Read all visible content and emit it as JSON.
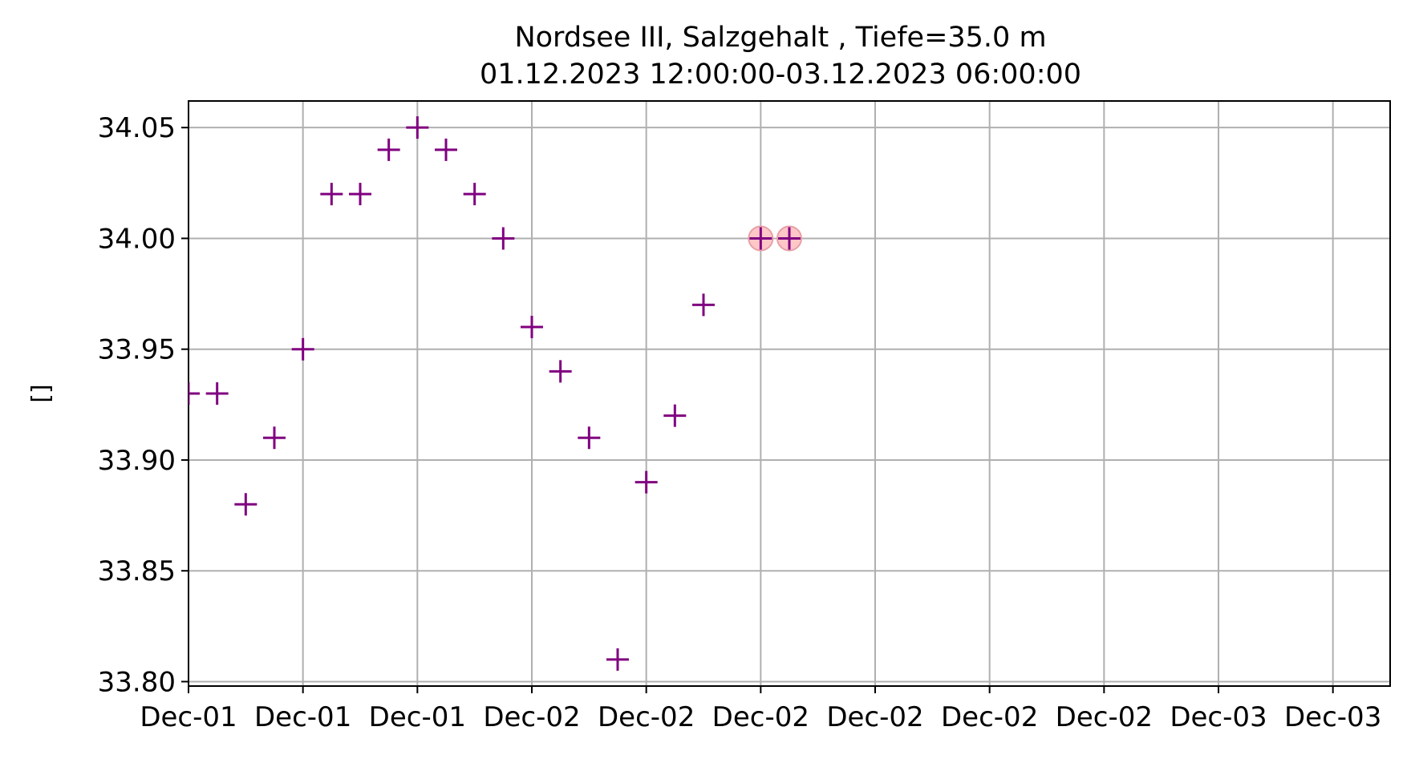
{
  "chart_data": {
    "type": "scatter",
    "title": "Nordsee III, Salzgehalt , Tiefe=35.0 m",
    "subtitle": "01.12.2023 12:00:00-03.12.2023 06:00:00",
    "xlabel": "",
    "ylabel": "[]",
    "x_tick_labels": [
      "Dec-01",
      "Dec-01",
      "Dec-01",
      "Dec-02",
      "Dec-02",
      "Dec-02",
      "Dec-02",
      "Dec-02",
      "Dec-02",
      "Dec-03",
      "Dec-03"
    ],
    "x_ticks": [
      "2023-12-01 12:00",
      "2023-12-01 16:00",
      "2023-12-01 20:00",
      "2023-12-02 00:00",
      "2023-12-02 04:00",
      "2023-12-02 08:00",
      "2023-12-02 12:00",
      "2023-12-02 16:00",
      "2023-12-02 20:00",
      "2023-12-03 00:00",
      "2023-12-03 04:00"
    ],
    "xlim": [
      "2023-12-01 12:00",
      "2023-12-03 06:00"
    ],
    "y_ticks": [
      33.8,
      33.85,
      33.9,
      33.95,
      34.0,
      34.05
    ],
    "ylim": [
      33.798,
      34.062
    ],
    "grid": true,
    "colors": {
      "marker": "#800080",
      "highlight_fill": "#ff9999",
      "highlight_edge": "#e8a0a8",
      "grid": "#b0b0b0",
      "axes": "#000000"
    },
    "series": [
      {
        "marker": "plus",
        "points": [
          {
            "x": "2023-12-01 12:00",
            "y": 33.93
          },
          {
            "x": "2023-12-01 13:00",
            "y": 33.93
          },
          {
            "x": "2023-12-01 14:00",
            "y": 33.88
          },
          {
            "x": "2023-12-01 15:00",
            "y": 33.91
          },
          {
            "x": "2023-12-01 16:00",
            "y": 33.95
          },
          {
            "x": "2023-12-01 17:00",
            "y": 34.02
          },
          {
            "x": "2023-12-01 18:00",
            "y": 34.02
          },
          {
            "x": "2023-12-01 19:00",
            "y": 34.04
          },
          {
            "x": "2023-12-01 20:00",
            "y": 34.05
          },
          {
            "x": "2023-12-01 21:00",
            "y": 34.04
          },
          {
            "x": "2023-12-01 22:00",
            "y": 34.02
          },
          {
            "x": "2023-12-01 23:00",
            "y": 34.0
          },
          {
            "x": "2023-12-02 00:00",
            "y": 33.96
          },
          {
            "x": "2023-12-02 01:00",
            "y": 33.94
          },
          {
            "x": "2023-12-02 02:00",
            "y": 33.91
          },
          {
            "x": "2023-12-02 03:00",
            "y": 33.81
          },
          {
            "x": "2023-12-02 04:00",
            "y": 33.89
          },
          {
            "x": "2023-12-02 05:00",
            "y": 33.92
          },
          {
            "x": "2023-12-02 06:00",
            "y": 33.97
          },
          {
            "x": "2023-12-02 08:00",
            "y": 34.0,
            "highlighted": true
          },
          {
            "x": "2023-12-02 09:00",
            "y": 34.0,
            "highlighted": true
          }
        ]
      }
    ]
  }
}
